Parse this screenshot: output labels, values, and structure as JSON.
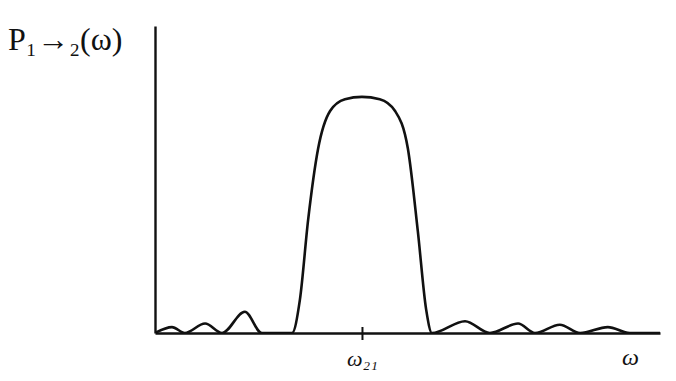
{
  "chart_data": {
    "type": "line",
    "ylabel": "P₁→₂(ω)",
    "xlabel": "ω",
    "x": [
      0,
      0.41,
      0.72,
      1.21,
      1.62,
      2.17,
      2.58,
      3.31,
      3.5,
      3.7,
      3.94,
      4.23,
      4.59,
      5.0,
      5.43,
      5.8,
      6.11,
      6.35,
      6.55,
      6.69,
      7.49,
      8.09,
      8.77,
      9.18,
      9.78,
      10.27,
      10.94,
      11.47,
      12.2
    ],
    "values": [
      0,
      0.025,
      0,
      0.04,
      0,
      0.09,
      0,
      0,
      0.14,
      0.48,
      0.78,
      0.94,
      0.99,
      1.0,
      0.99,
      0.94,
      0.78,
      0.43,
      0.1,
      0,
      0.05,
      0,
      0.04,
      0,
      0.035,
      0,
      0.025,
      0,
      0
    ],
    "color": "#111111",
    "xlim": [
      0,
      12.2
    ],
    "ylim": [
      0,
      1.3
    ],
    "xticks": [
      {
        "value": 5,
        "label": "ω₂₁"
      }
    ],
    "yticks": [],
    "grid": false,
    "tick_labels": "x"
  }
}
